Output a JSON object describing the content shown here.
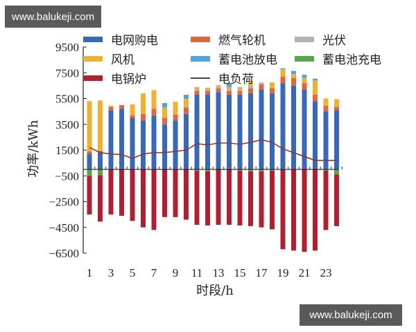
{
  "watermark_top": "www.balukeji.com",
  "watermark_bottom": "www.balukeji.com",
  "chart_data": {
    "type": "bar",
    "stacked": true,
    "title": "",
    "xlabel": "时段/h",
    "ylabel": "功率/kWh",
    "ylim": [
      -6500,
      9500
    ],
    "yticks": [
      9500,
      7500,
      5500,
      3500,
      1500,
      -500,
      -2500,
      -4500,
      -6500
    ],
    "xticks": [
      1,
      3,
      5,
      7,
      9,
      11,
      13,
      15,
      17,
      19,
      21,
      23
    ],
    "categories": [
      1,
      2,
      3,
      4,
      5,
      6,
      7,
      8,
      9,
      10,
      11,
      12,
      13,
      14,
      15,
      16,
      17,
      18,
      19,
      20,
      21,
      22,
      23,
      24
    ],
    "legend": [
      {
        "name": "电网购电",
        "color": "#3a68b8",
        "kind": "bar"
      },
      {
        "name": "燃气轮机",
        "color": "#e0683a",
        "kind": "bar"
      },
      {
        "name": "光伏",
        "color": "#b3b3b3",
        "kind": "bar"
      },
      {
        "name": "风机",
        "color": "#f0b030",
        "kind": "bar"
      },
      {
        "name": "蓄电池放电",
        "color": "#4aa8df",
        "kind": "bar"
      },
      {
        "name": "蓄电池充电",
        "color": "#5aa845",
        "kind": "bar"
      },
      {
        "name": "电锅炉",
        "color": "#b02030",
        "kind": "bar"
      },
      {
        "name": "电负荷",
        "color": "#8a3a30",
        "kind": "line"
      }
    ],
    "series": [
      {
        "name": "电网购电",
        "values": [
          1200,
          1300,
          4600,
          4700,
          4000,
          3800,
          4200,
          3500,
          3800,
          4300,
          5800,
          5800,
          6000,
          5800,
          5800,
          5900,
          6200,
          5900,
          6700,
          6500,
          6200,
          5300,
          4500,
          4600
        ]
      },
      {
        "name": "燃气轮机",
        "values": [
          200,
          150,
          250,
          300,
          200,
          500,
          500,
          500,
          450,
          500,
          300,
          300,
          300,
          300,
          300,
          400,
          400,
          400,
          500,
          600,
          500,
          500,
          450,
          250
        ]
      },
      {
        "name": "光伏",
        "values": [
          0,
          0,
          0,
          0,
          0,
          0,
          0,
          0,
          0,
          150,
          150,
          150,
          150,
          150,
          150,
          200,
          150,
          0,
          0,
          0,
          0,
          0,
          0,
          0
        ]
      },
      {
        "name": "风机",
        "values": [
          3900,
          3900,
          100,
          0,
          850,
          1600,
          1450,
          800,
          1000,
          550,
          150,
          100,
          100,
          150,
          150,
          350,
          0,
          450,
          550,
          300,
          400,
          1100,
          550,
          600
        ]
      },
      {
        "name": "蓄电池放电",
        "values": [
          0,
          0,
          0,
          0,
          0,
          0,
          0,
          350,
          0,
          300,
          0,
          0,
          0,
          300,
          0,
          0,
          0,
          0,
          100,
          250,
          250,
          150,
          0,
          0
        ]
      },
      {
        "name": "蓄电池充电",
        "values": [
          -500,
          -450,
          0,
          0,
          0,
          0,
          0,
          0,
          0,
          0,
          -100,
          -150,
          0,
          0,
          -100,
          -150,
          -150,
          -100,
          0,
          0,
          0,
          0,
          -100,
          -400
        ]
      },
      {
        "name": "电锅炉",
        "values": [
          -3000,
          -3600,
          -3500,
          -3600,
          -4000,
          -4500,
          -4700,
          -3700,
          -3700,
          -3900,
          -4200,
          -4200,
          -4300,
          -4300,
          -4250,
          -4250,
          -4350,
          -4550,
          -6200,
          -6300,
          -6400,
          -6300,
          -4600,
          -4000
        ]
      },
      {
        "name": "电负荷",
        "type": "line",
        "values": [
          1700,
          1300,
          1200,
          1150,
          850,
          1200,
          1300,
          1300,
          1400,
          1500,
          2000,
          1900,
          2050,
          2050,
          1950,
          2100,
          2300,
          2100,
          1600,
          1300,
          1000,
          700,
          700,
          700
        ]
      }
    ]
  }
}
